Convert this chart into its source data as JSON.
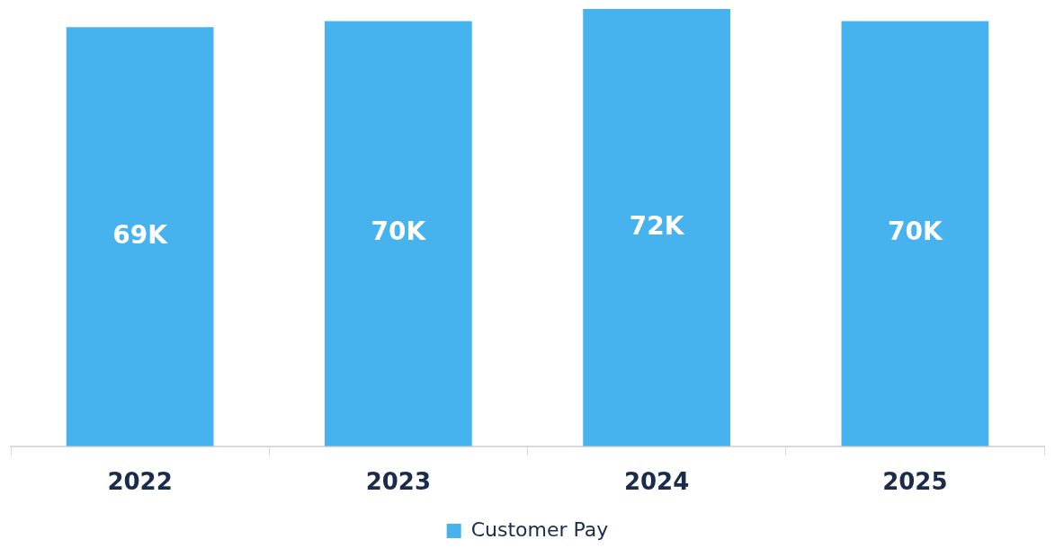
{
  "chart_data": {
    "type": "bar",
    "categories": [
      "2022",
      "2023",
      "2024",
      "2025"
    ],
    "series": [
      {
        "name": "Customer Pay",
        "color": "#47b3ee",
        "values": [
          69,
          70,
          72,
          70
        ],
        "value_labels": [
          "69K",
          "70K",
          "72K",
          "70K"
        ]
      }
    ],
    "legend": "bottom",
    "grid": false
  }
}
